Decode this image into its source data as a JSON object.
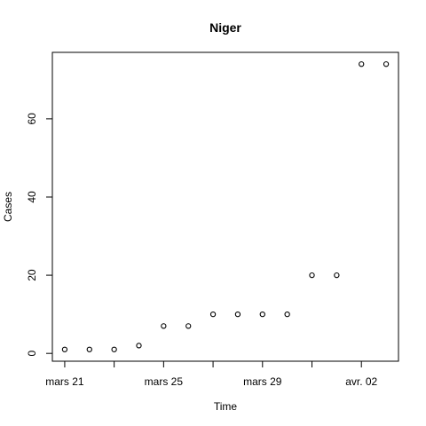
{
  "chart_data": {
    "type": "scatter",
    "title": "Niger",
    "xlabel": "Time",
    "ylabel": "Cases",
    "x": [
      "2020-03-21",
      "2020-03-22",
      "2020-03-23",
      "2020-03-24",
      "2020-03-25",
      "2020-03-26",
      "2020-03-27",
      "2020-03-28",
      "2020-03-29",
      "2020-03-30",
      "2020-03-31",
      "2020-04-01",
      "2020-04-02",
      "2020-04-03"
    ],
    "y": [
      1,
      1,
      1,
      2,
      7,
      7,
      10,
      10,
      10,
      10,
      20,
      20,
      74,
      74
    ],
    "xlim": [
      "2020-03-20T12:00",
      "2020-04-03T12:00"
    ],
    "ylim": [
      -2,
      77
    ],
    "x_ticks": [
      {
        "date": "2020-03-21",
        "label": "mars 21"
      },
      {
        "date": "2020-03-23",
        "label": ""
      },
      {
        "date": "2020-03-25",
        "label": "mars 25"
      },
      {
        "date": "2020-03-27",
        "label": ""
      },
      {
        "date": "2020-03-29",
        "label": "mars 29"
      },
      {
        "date": "2020-03-31",
        "label": ""
      },
      {
        "date": "2020-04-02",
        "label": "avr. 02"
      }
    ],
    "y_ticks": [
      0,
      20,
      40,
      60
    ],
    "grid": false,
    "legend": "none",
    "marker": "open-circle"
  }
}
